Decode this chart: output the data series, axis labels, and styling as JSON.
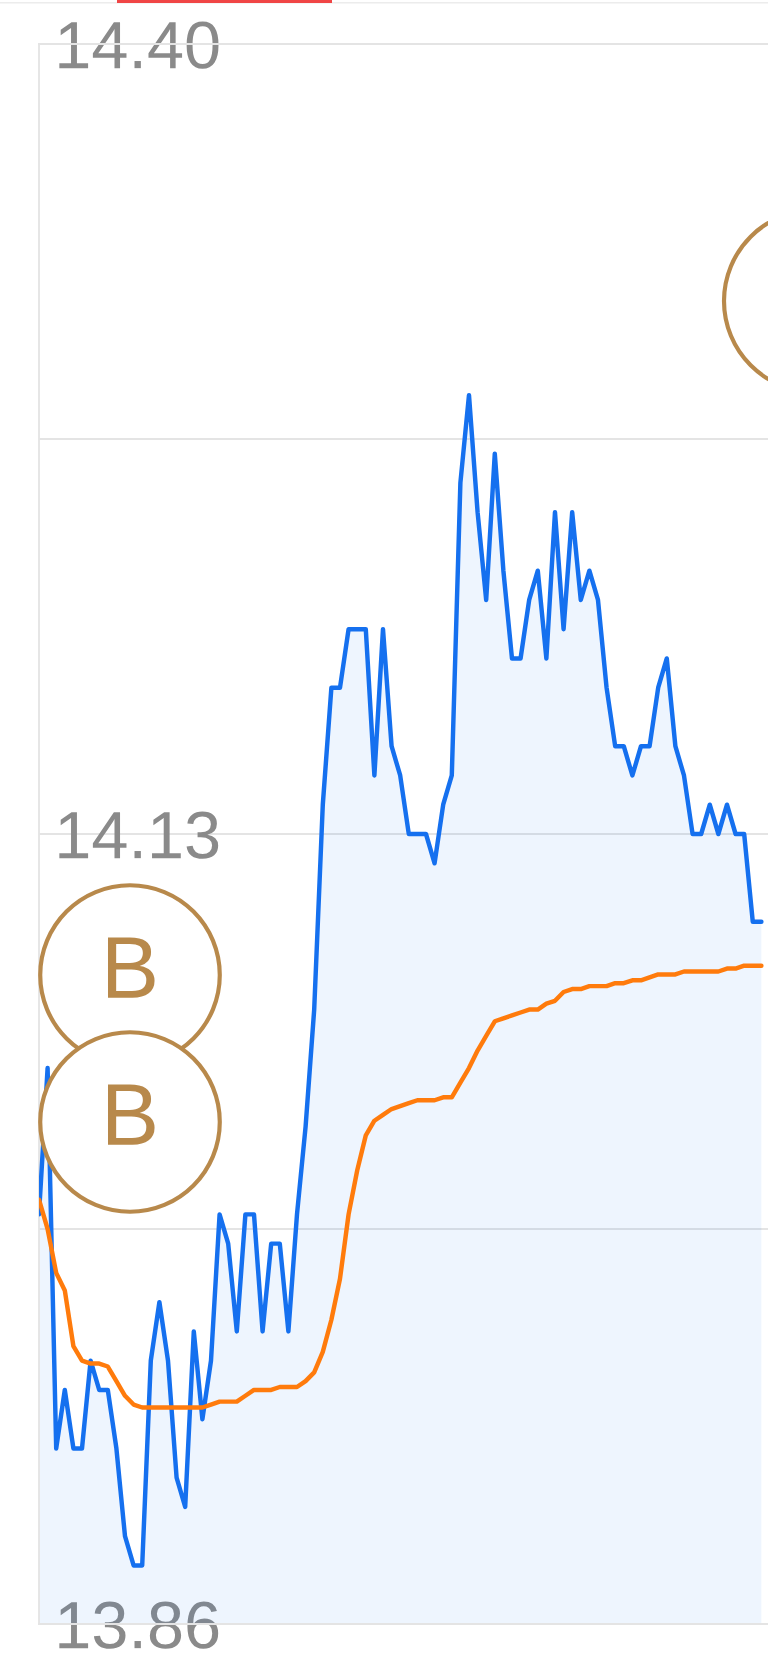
{
  "chart_data": {
    "type": "line",
    "categories": [
      null,
      null,
      null,
      null,
      null,
      null,
      null,
      null,
      null,
      null,
      null,
      null,
      null,
      null,
      null,
      null,
      null,
      null,
      null,
      null,
      null,
      null,
      null,
      null,
      null,
      null,
      null,
      null,
      null,
      null,
      null,
      null,
      null,
      null,
      null,
      null,
      null,
      null,
      null,
      null,
      null,
      null,
      null,
      null,
      null,
      null,
      null,
      null,
      null,
      null,
      null,
      null,
      null,
      null,
      null,
      null,
      null,
      null,
      null,
      null,
      null,
      null,
      null,
      null,
      null,
      null,
      null,
      null,
      null,
      null,
      null,
      null,
      null,
      null,
      null,
      null,
      null,
      null,
      null,
      null,
      null,
      null,
      null,
      null,
      null
    ],
    "series": [
      {
        "type": "area",
        "color": "#1570ef",
        "values": [
          14.0,
          14.05,
          13.92,
          13.94,
          13.92,
          13.92,
          13.95,
          13.94,
          13.94,
          13.92,
          13.89,
          13.88,
          13.88,
          13.95,
          13.97,
          13.95,
          13.91,
          13.9,
          13.96,
          13.93,
          13.95,
          14.0,
          13.99,
          13.96,
          14.0,
          14.0,
          13.96,
          13.99,
          13.99,
          13.96,
          14.0,
          14.03,
          14.07,
          14.14,
          14.18,
          14.18,
          14.2,
          14.2,
          14.2,
          14.15,
          14.2,
          14.16,
          14.15,
          14.13,
          14.13,
          14.13,
          14.12,
          14.14,
          14.15,
          14.25,
          14.28,
          14.24,
          14.21,
          14.26,
          14.22,
          14.19,
          14.19,
          14.21,
          14.22,
          14.19,
          14.24,
          14.2,
          14.24,
          14.21,
          14.22,
          14.21,
          14.18,
          14.16,
          14.16,
          14.15,
          14.16,
          14.16,
          14.18,
          14.19,
          14.16,
          14.15,
          14.13,
          14.13,
          14.14,
          14.13,
          14.14,
          14.13,
          14.13,
          14.1,
          14.1
        ]
      },
      {
        "color": "#ff7b0c",
        "values": [
          14.005,
          13.995,
          13.98,
          13.974,
          13.955,
          13.95,
          13.949,
          13.949,
          13.948,
          13.943,
          13.938,
          13.935,
          13.934,
          13.934,
          13.934,
          13.934,
          13.934,
          13.934,
          13.934,
          13.934,
          13.935,
          13.936,
          13.936,
          13.936,
          13.938,
          13.94,
          13.94,
          13.94,
          13.941,
          13.941,
          13.941,
          13.943,
          13.946,
          13.953,
          13.964,
          13.978,
          14.0,
          14.015,
          14.027,
          14.032,
          14.034,
          14.036,
          14.037,
          14.038,
          14.039,
          14.039,
          14.039,
          14.04,
          14.04,
          14.045,
          14.05,
          14.056,
          14.061,
          14.066,
          14.067,
          14.068,
          14.069,
          14.07,
          14.07,
          14.072,
          14.073,
          14.076,
          14.077,
          14.077,
          14.078,
          14.078,
          14.078,
          14.079,
          14.079,
          14.08,
          14.08,
          14.081,
          14.082,
          14.082,
          14.082,
          14.083,
          14.083,
          14.083,
          14.083,
          14.083,
          14.084,
          14.084,
          14.085,
          14.085,
          14.085
        ]
      }
    ],
    "ylim": [
      13.86,
      14.4
    ],
    "yticks": [
      {
        "value": 14.4,
        "label": "14.40"
      },
      {
        "value": 14.265,
        "label": null
      },
      14.13,
      {
        "value": 13.995,
        "label": null
      },
      13.86
    ],
    "tick_labels": "y",
    "grid": "y",
    "annotations": [
      "B",
      "B"
    ]
  }
}
